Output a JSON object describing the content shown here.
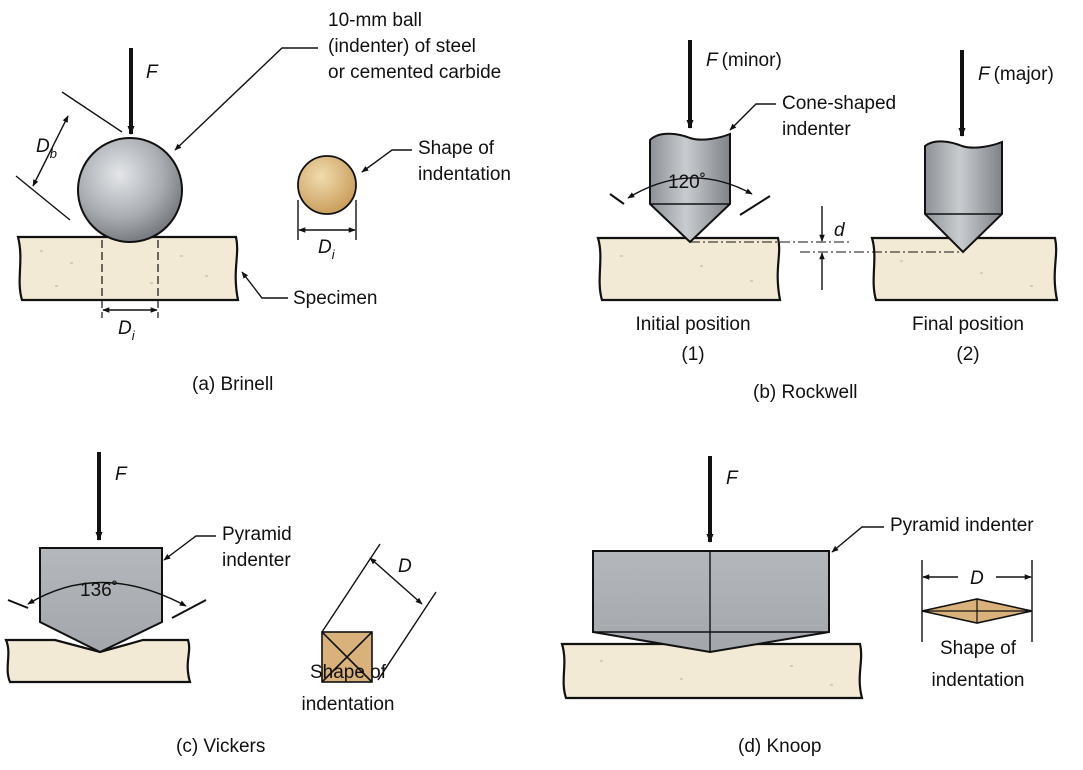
{
  "brinell": {
    "force": "F",
    "ball_label": [
      "10-mm ball",
      "(indenter) of steel",
      "or cemented carbide"
    ],
    "db_main": "D",
    "db_sub": "b",
    "shape_label": [
      "Shape of",
      "indentation"
    ],
    "di_main": "D",
    "di_sub": "i",
    "specimen_label": "Specimen",
    "caption": "(a) Brinell"
  },
  "rockwell": {
    "force_minor_f": "F",
    "force_minor_text": "(minor)",
    "force_major_f": "F",
    "force_major_text": "(major)",
    "indenter_label": [
      "Cone-shaped",
      "indenter"
    ],
    "angle": "120˚",
    "depth": "d",
    "pos1": [
      "Initial position",
      "(1)"
    ],
    "pos2": [
      "Final position",
      "(2)"
    ],
    "caption": "(b) Rockwell"
  },
  "vickers": {
    "force": "F",
    "indenter_label": [
      "Pyramid",
      "indenter"
    ],
    "angle": "136˚",
    "d_label": "D",
    "shape_label": [
      "Shape of",
      "indentation"
    ],
    "caption": "(c) Vickers"
  },
  "knoop": {
    "force": "F",
    "indenter_label": "Pyramid indenter",
    "d_label": "D",
    "shape_label": [
      "Shape of",
      "indentation"
    ],
    "caption": "(d) Knoop"
  },
  "colors": {
    "specimen": "#f3ead6",
    "indenter_gray": "#a9adb2",
    "indentation_tan": "#d8b27a"
  }
}
